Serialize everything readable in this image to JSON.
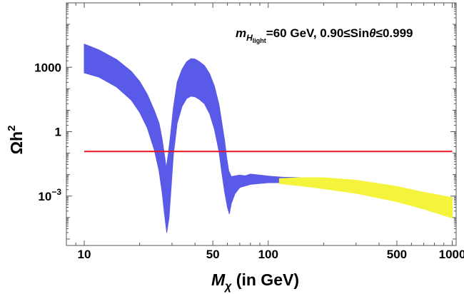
{
  "chart_data": {
    "type": "area",
    "title": "",
    "annotation": {
      "mass_symbol": "m",
      "mass_subscript": "H",
      "mass_subsubscript": "light",
      "mass_value": "=60 GeV, 0.90≤Sin",
      "theta_symbol": "θ",
      "range_tail": "≤0.999"
    },
    "xlabel": {
      "symbol": "M",
      "subscript": "χ",
      "units": " (in GeV)"
    },
    "ylabel": {
      "omega": "Ω",
      "h": "h",
      "exponent": "2"
    },
    "x_scale": "log",
    "y_scale": "log",
    "xlim": [
      8.0,
      1050
    ],
    "ylim": [
      5e-06,
      1000000
    ],
    "x_ticks": [
      {
        "value": 10,
        "label": "10"
      },
      {
        "value": 50,
        "label": "50"
      },
      {
        "value": 100,
        "label": "100"
      },
      {
        "value": 500,
        "label": "500"
      },
      {
        "value": 1000,
        "label": "1000"
      }
    ],
    "y_ticks": [
      {
        "value": 1000,
        "label": "1000"
      },
      {
        "value": 1,
        "label": "1"
      },
      {
        "value": 0.001,
        "label_base": "10",
        "label_exp": "−3"
      }
    ],
    "colors": {
      "band_blue": "#5a5ae8",
      "band_yellow": "#f4f43c",
      "line_red": "#e8141e",
      "frame": "#555555",
      "minor_tick": "#888888"
    },
    "series": [
      {
        "name": "relic density band (blue)",
        "color": "#5a5ae8",
        "upper": [
          [
            10,
            12000
          ],
          [
            12,
            6500
          ],
          [
            15,
            2300
          ],
          [
            18,
            650
          ],
          [
            20,
            220
          ],
          [
            22,
            55
          ],
          [
            24,
            10
          ],
          [
            25.5,
            2.5
          ],
          [
            26.5,
            0.45
          ],
          [
            27.3,
            0.08
          ],
          [
            27.9,
            0.02
          ],
          [
            28.6,
            0.08
          ],
          [
            29.5,
            0.8
          ],
          [
            30.5,
            12
          ],
          [
            32,
            200
          ],
          [
            34,
            800
          ],
          [
            36,
            1800
          ],
          [
            38,
            2500
          ],
          [
            40,
            2400
          ],
          [
            42,
            1900
          ],
          [
            45,
            1200
          ],
          [
            48,
            500
          ],
          [
            51,
            130
          ],
          [
            54,
            18
          ],
          [
            56,
            2.5
          ],
          [
            58,
            0.35
          ],
          [
            59.5,
            0.06
          ],
          [
            61,
            0.015
          ],
          [
            63,
            0.008
          ],
          [
            65,
            0.0085
          ],
          [
            70,
            0.0095
          ],
          [
            75,
            0.0088
          ],
          [
            80,
            0.0105
          ],
          [
            90,
            0.0095
          ],
          [
            100,
            0.0085
          ],
          [
            120,
            0.0075
          ],
          [
            150,
            0.0072
          ]
        ],
        "lower": [
          [
            10,
            550
          ],
          [
            12,
            350
          ],
          [
            15,
            120
          ],
          [
            18,
            30
          ],
          [
            20,
            8
          ],
          [
            22,
            1.5
          ],
          [
            24,
            0.15
          ],
          [
            25.5,
            0.015
          ],
          [
            26.5,
            0.0015
          ],
          [
            27.3,
            0.00015
          ],
          [
            28.1,
            2e-05
          ],
          [
            28.9,
            0.0001
          ],
          [
            29.6,
            0.002
          ],
          [
            30.5,
            0.08
          ],
          [
            32,
            2.5
          ],
          [
            34,
            15
          ],
          [
            36,
            35
          ],
          [
            38,
            45
          ],
          [
            40,
            42
          ],
          [
            42,
            33
          ],
          [
            45,
            20
          ],
          [
            48,
            7
          ],
          [
            51,
            1.3
          ],
          [
            54,
            0.12
          ],
          [
            56,
            0.012
          ],
          [
            58,
            0.0015
          ],
          [
            60,
            0.0003
          ],
          [
            61.5,
            0.00015
          ],
          [
            63,
            0.00045
          ],
          [
            66,
            0.0013
          ],
          [
            70,
            0.0025
          ],
          [
            80,
            0.0035
          ],
          [
            100,
            0.0042
          ],
          [
            120,
            0.0042
          ],
          [
            150,
            0.0042
          ]
        ]
      },
      {
        "name": "relic density band (yellow)",
        "color": "#f4f43c",
        "upper": [
          [
            115,
            0.0065
          ],
          [
            150,
            0.0072
          ],
          [
            200,
            0.0072
          ],
          [
            300,
            0.0055
          ],
          [
            500,
            0.0028
          ],
          [
            700,
            0.0015
          ],
          [
            1000,
            0.00085
          ]
        ],
        "lower": [
          [
            115,
            0.0038
          ],
          [
            150,
            0.003
          ],
          [
            200,
            0.0022
          ],
          [
            300,
            0.00135
          ],
          [
            500,
            0.00055
          ],
          [
            700,
            0.00025
          ],
          [
            1000,
            9.5e-05
          ]
        ]
      }
    ],
    "reference_line": {
      "name": "observed relic density",
      "value": 0.12,
      "x_range": [
        10,
        1000
      ],
      "color": "#e8141e"
    }
  }
}
